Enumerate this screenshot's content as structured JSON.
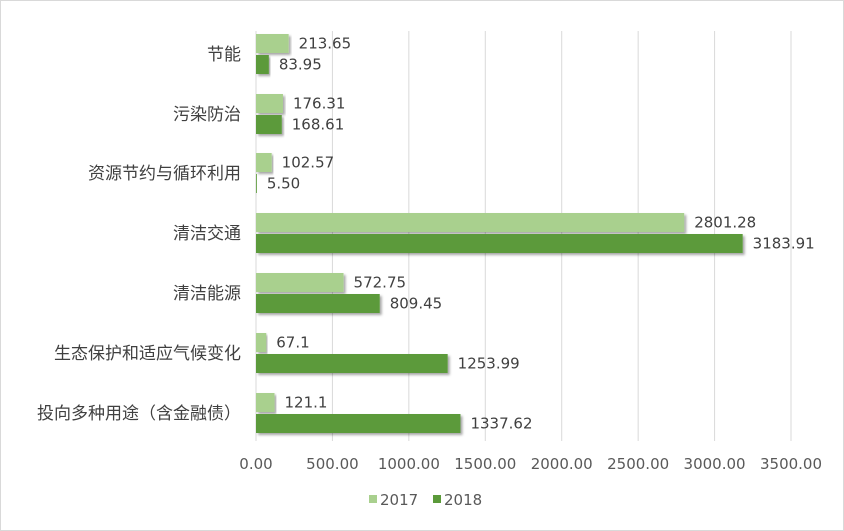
{
  "chart_data": {
    "type": "bar",
    "orientation": "horizontal",
    "categories": [
      "节能",
      "污染防治",
      "资源节约与循环利用",
      "清洁交通",
      "清洁能源",
      "生态保护和适应气候变化",
      "投向多种用途（含金融债）"
    ],
    "series": [
      {
        "name": "2017",
        "values": [
          213.65,
          176.31,
          102.57,
          2801.28,
          572.75,
          67.1,
          121.1
        ],
        "labels": [
          "213.65",
          "176.31",
          "102.57",
          "2801.28",
          "572.75",
          "67.1",
          "121.1"
        ]
      },
      {
        "name": "2018",
        "values": [
          83.95,
          168.61,
          5.5,
          3183.91,
          809.45,
          1253.99,
          1337.62
        ],
        "labels": [
          "83.95",
          "168.61",
          "5.50",
          "3183.91",
          "809.45",
          "1253.99",
          "1337.62"
        ]
      }
    ],
    "xticks": [
      "0.00",
      "500.00",
      "1000.00",
      "1500.00",
      "2000.00",
      "2500.00",
      "3000.00",
      "3500.00"
    ],
    "xlim": [
      0,
      3500
    ],
    "grid": "vertical",
    "legend": "bottom",
    "title": "",
    "xlabel": "",
    "ylabel": ""
  },
  "colors": {
    "s2017": "#a9d08e",
    "s2018": "#5b9a3a",
    "grid": "#d9d9d9"
  }
}
